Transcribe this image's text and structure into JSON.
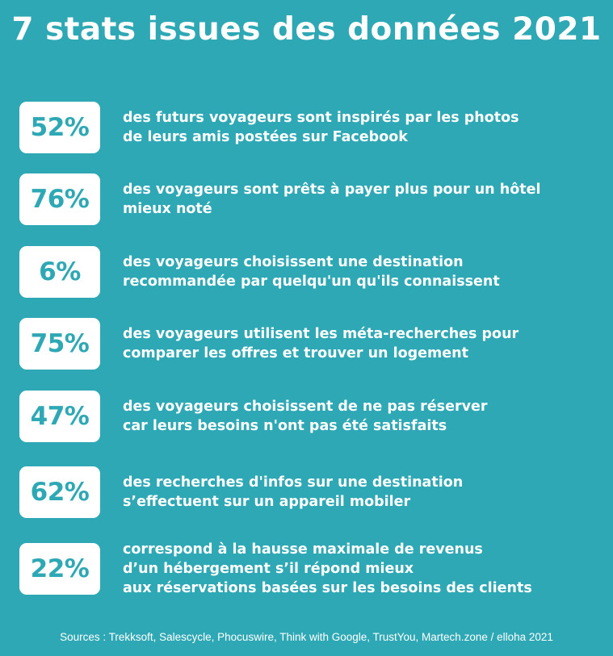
{
  "title": "7 stats issues des données 2021",
  "stats": [
    {
      "value": "52%",
      "lines": [
        "des futurs voyageurs sont inspirés par les photos",
        "de leurs amis postées sur Facebook"
      ]
    },
    {
      "value": "76%",
      "lines": [
        "des voyageurs sont prêts à payer plus pour un hôtel",
        "mieux noté"
      ]
    },
    {
      "value": "6%",
      "lines": [
        "des voyageurs choisissent une destination",
        "recommandée par quelqu'un qu'ils connaissent"
      ]
    },
    {
      "value": "75%",
      "lines": [
        "des voyageurs utilisent les méta-recherches pour",
        "comparer les offres et trouver un logement"
      ]
    },
    {
      "value": "47%",
      "lines": [
        "des voyageurs choisissent de ne pas réserver",
        "car leurs besoins n'ont pas été satisfaits"
      ]
    },
    {
      "value": "62%",
      "lines": [
        "des recherches d'infos sur une destination",
        "s’effectuent sur un appareil mobiler"
      ]
    },
    {
      "value": "22%",
      "lines": [
        "correspond à la hausse maximale de revenus",
        "d’un hébergement s’il répond mieux",
        "aux réservations basées sur les besoins des clients"
      ]
    }
  ],
  "sources": "Sources : Trekksoft, Salescycle, Phocuswire, Think with Google, TrustYou, Martech.zone / elloha 2021",
  "colors": {
    "background": "#2ea8b4",
    "badge": "#ffffff",
    "text": "#ffffff"
  }
}
